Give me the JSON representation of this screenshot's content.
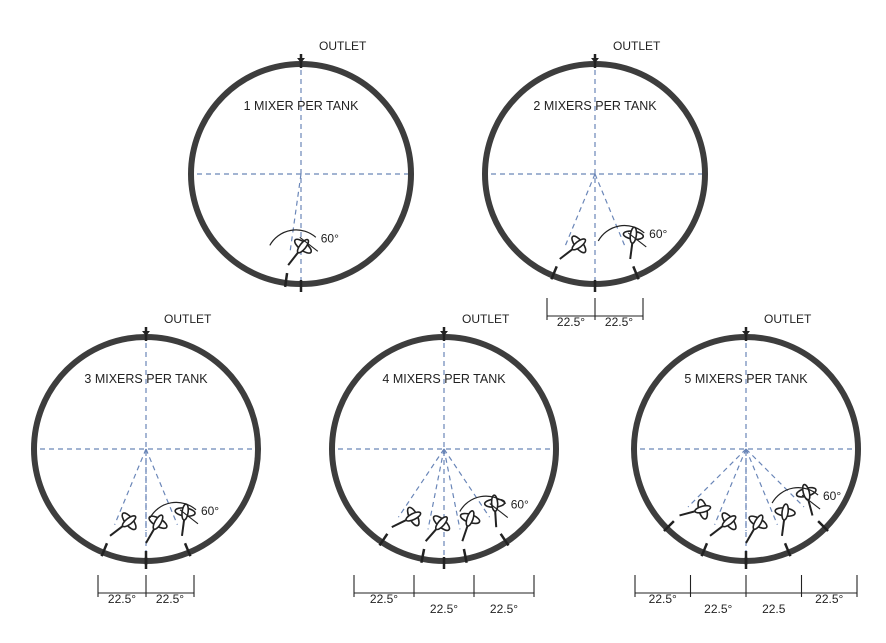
{
  "diagrams": [
    {
      "title": "1 MIXER PER TANK",
      "outlet": "OUTLET",
      "mixers": 1,
      "angle_label": "60°",
      "spacing_labels": []
    },
    {
      "title": "2 MIXERS PER TANK",
      "outlet": "OUTLET",
      "mixers": 2,
      "angle_label": "60°",
      "spacing_labels": [
        "22.5°",
        "22.5°"
      ]
    },
    {
      "title": "3 MIXERS PER TANK",
      "outlet": "OUTLET",
      "mixers": 3,
      "angle_label": "60°",
      "spacing_labels": [
        "22.5°",
        "22.5°"
      ]
    },
    {
      "title": "4 MIXERS PER TANK",
      "outlet": "OUTLET",
      "mixers": 4,
      "angle_label": "60°",
      "spacing_labels": [
        "22.5°",
        "22.5°",
        "22.5°"
      ]
    },
    {
      "title": "5 MIXERS PER TANK",
      "outlet": "OUTLET",
      "mixers": 5,
      "angle_label": "60°",
      "spacing_labels": [
        "22.5°",
        "22.5°",
        "22.5",
        "22.5°"
      ]
    }
  ]
}
